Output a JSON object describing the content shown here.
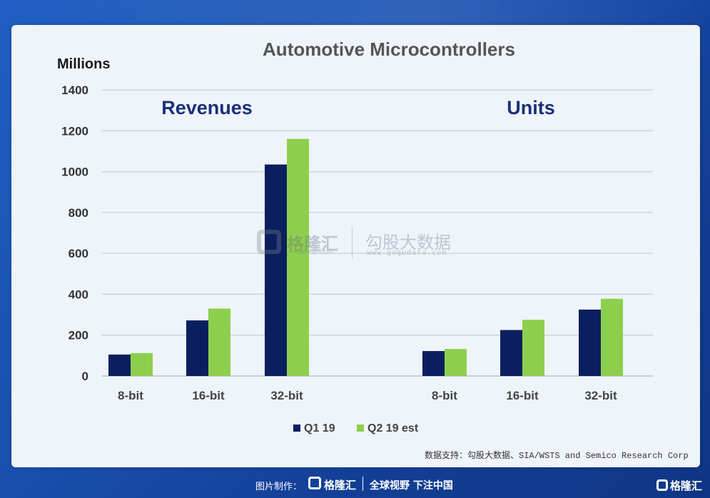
{
  "chart_data": {
    "type": "bar",
    "title": "Automotive Microcontrollers",
    "ylabel": "Millions",
    "ylim": [
      0,
      1400
    ],
    "yticks": [
      0,
      200,
      400,
      600,
      800,
      1000,
      1200,
      1400
    ],
    "grid": true,
    "legend_position": "bottom",
    "panels": [
      {
        "label": "Revenues",
        "categories": [
          "8-bit",
          "16-bit",
          "32-bit"
        ],
        "series": [
          {
            "name": "Q1 19",
            "values": [
              105,
              272,
              1035
            ]
          },
          {
            "name": "Q2 19 est",
            "values": [
              112,
              330,
              1160
            ]
          }
        ]
      },
      {
        "label": "Units",
        "categories": [
          "8-bit",
          "16-bit",
          "32-bit"
        ],
        "series": [
          {
            "name": "Q1 19",
            "values": [
              122,
              225,
              325
            ]
          },
          {
            "name": "Q2 19 est",
            "values": [
              132,
              275,
              378
            ]
          }
        ]
      }
    ],
    "colors": {
      "Q1 19": "#0b1f5e",
      "Q2 19 est": "#8ccf4d"
    }
  },
  "source": "数据支持：勾股大数据、SIA/WSTS and Semico Research Corp",
  "watermark": {
    "name": "格隆汇",
    "url": "www.gelonghui.com",
    "name2": "勾股大数据",
    "url2": "www.gogudata.com"
  },
  "footer": {
    "made_by": "图片制作：",
    "logo_name": "格隆汇",
    "slogan": "全球视野 下注中国",
    "corner_logo": "格隆汇"
  }
}
